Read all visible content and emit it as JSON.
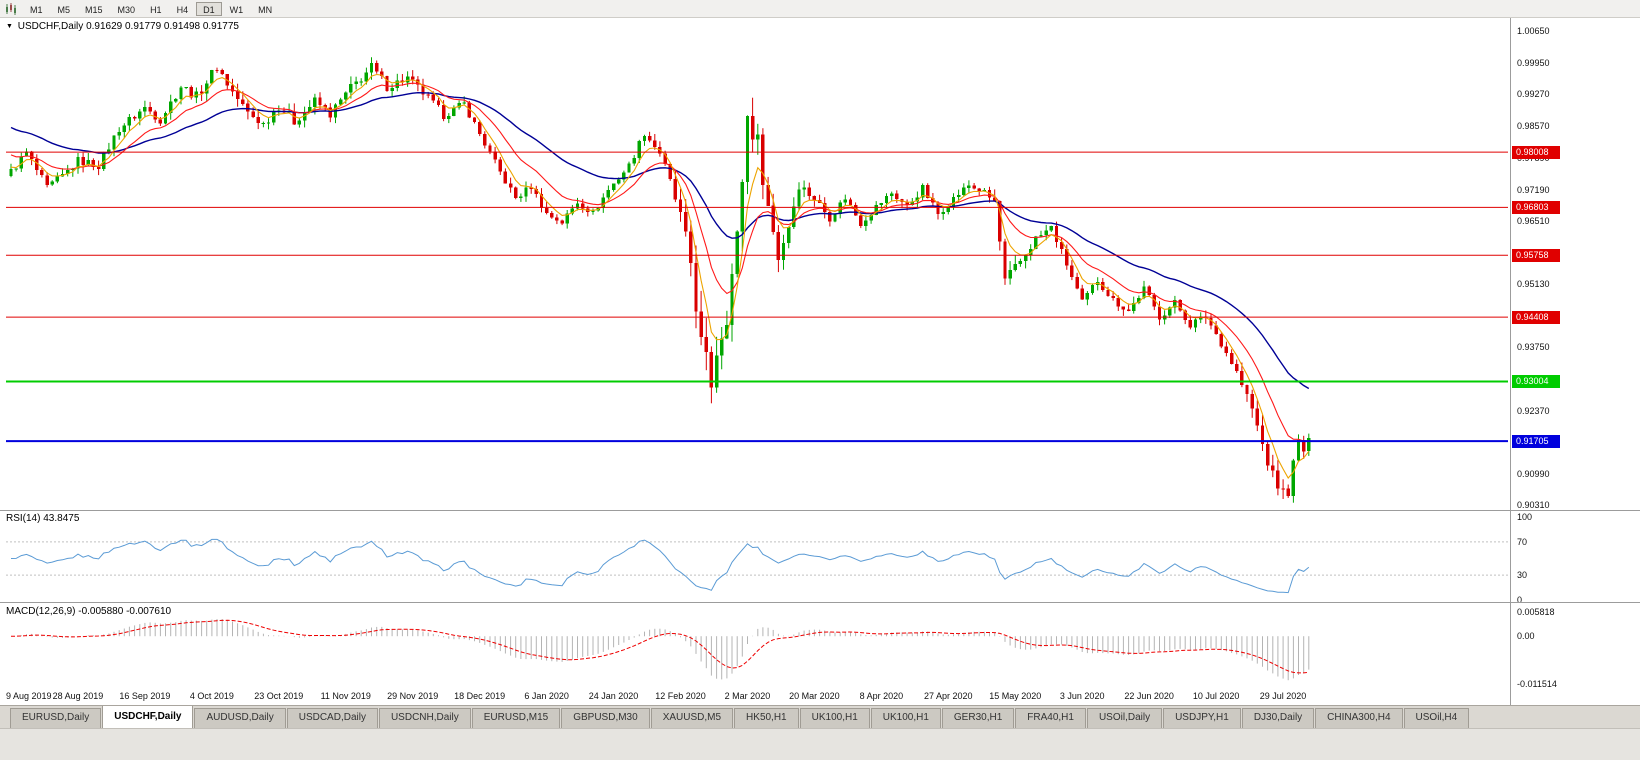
{
  "toolbar": {
    "timeframes": [
      "M1",
      "M5",
      "M15",
      "M30",
      "H1",
      "H4",
      "D1",
      "W1",
      "MN"
    ],
    "active_timeframe": "D1"
  },
  "icons": {
    "title_marker": "▼"
  },
  "chart": {
    "symbol_title": "USDCHF,Daily",
    "ohlc_text": "0.91629 0.91779 0.91498 0.91775"
  },
  "indicators": {
    "rsi_label": "RSI(14) 43.8475",
    "macd_label": "MACD(12,26,9) -0.005880 -0.007610"
  },
  "chart_data": {
    "type": "candlestick",
    "symbol": "USDCHF",
    "timeframe": "Daily",
    "ohlc": {
      "open": 0.91629,
      "high": 0.91779,
      "low": 0.91498,
      "close": 0.91775
    },
    "price_axis": {
      "max": 1.0065,
      "min": 0.9031,
      "ticks": [
        "1.00650",
        "0.99950",
        "0.99270",
        "0.98570",
        "0.97890",
        "0.97190",
        "0.96510",
        "0.95810",
        "0.95130",
        "0.94430",
        "0.93750",
        "0.93050",
        "0.92370",
        "0.91690",
        "0.90990",
        "0.90310"
      ]
    },
    "time_axis": {
      "bars_per_label": 13,
      "labels": [
        "9 Aug 2019",
        "28 Aug 2019",
        "16 Sep 2019",
        "4 Oct 2019",
        "23 Oct 2019",
        "11 Nov 2019",
        "29 Nov 2019",
        "18 Dec 2019",
        "6 Jan 2020",
        "24 Jan 2020",
        "12 Feb 2020",
        "2 Mar 2020",
        "20 Mar 2020",
        "8 Apr 2020",
        "27 Apr 2020",
        "15 May 2020",
        "3 Jun 2020",
        "22 Jun 2020",
        "10 Jul 2020",
        "29 Jul 2020"
      ]
    },
    "levels": [
      {
        "value": 0.98008,
        "label": "0.98008",
        "color": "#e00000",
        "width": 1
      },
      {
        "value": 0.96803,
        "label": "0.96803",
        "color": "#e00000",
        "width": 1
      },
      {
        "value": 0.95758,
        "label": "0.95758",
        "color": "#e00000",
        "width": 1
      },
      {
        "value": 0.94408,
        "label": "0.94408",
        "color": "#e00000",
        "width": 1
      },
      {
        "value": 0.93004,
        "label": "0.93004",
        "color": "#00cc00",
        "width": 2
      },
      {
        "value": 0.91705,
        "label": "0.91705",
        "color": "#0000dd",
        "width": 2
      }
    ],
    "candles": {
      "count": 253,
      "bull_color": "#00a600",
      "bear_color": "#d90000",
      "close_path_anchors": [
        [
          0,
          0.9758
        ],
        [
          3,
          0.98
        ],
        [
          7,
          0.9722
        ],
        [
          10,
          0.9748
        ],
        [
          13,
          0.9782
        ],
        [
          17,
          0.9772
        ],
        [
          21,
          0.9852
        ],
        [
          26,
          0.9898
        ],
        [
          29,
          0.9872
        ],
        [
          33,
          0.9945
        ],
        [
          36,
          0.9922
        ],
        [
          40,
          0.9988
        ],
        [
          43,
          0.9932
        ],
        [
          46,
          0.9886
        ],
        [
          49,
          0.9862
        ],
        [
          52,
          0.9902
        ],
        [
          55,
          0.9868
        ],
        [
          59,
          0.9912
        ],
        [
          62,
          0.9884
        ],
        [
          66,
          0.994
        ],
        [
          70,
          0.9986
        ],
        [
          73,
          0.9944
        ],
        [
          77,
          0.9962
        ],
        [
          80,
          0.993
        ],
        [
          84,
          0.9882
        ],
        [
          88,
          0.9906
        ],
        [
          91,
          0.984
        ],
        [
          95,
          0.9756
        ],
        [
          98,
          0.97
        ],
        [
          101,
          0.9726
        ],
        [
          104,
          0.9666
        ],
        [
          107,
          0.9648
        ],
        [
          110,
          0.9692
        ],
        [
          113,
          0.9668
        ],
        [
          116,
          0.9718
        ],
        [
          120,
          0.9772
        ],
        [
          123,
          0.9843
        ],
        [
          126,
          0.98
        ],
        [
          128,
          0.9736
        ],
        [
          130,
          0.966
        ],
        [
          132,
          0.956
        ],
        [
          134,
          0.938
        ],
        [
          136,
          0.93
        ],
        [
          137,
          0.9372
        ],
        [
          139,
          0.9452
        ],
        [
          141,
          0.9612
        ],
        [
          143,
          0.9878
        ],
        [
          145,
          0.982
        ],
        [
          147,
          0.9682
        ],
        [
          149,
          0.9572
        ],
        [
          151,
          0.9642
        ],
        [
          153,
          0.973
        ],
        [
          156,
          0.97
        ],
        [
          159,
          0.9658
        ],
        [
          162,
          0.9702
        ],
        [
          165,
          0.9646
        ],
        [
          168,
          0.9682
        ],
        [
          171,
          0.9712
        ],
        [
          174,
          0.9682
        ],
        [
          177,
          0.9722
        ],
        [
          180,
          0.9666
        ],
        [
          183,
          0.97
        ],
        [
          186,
          0.9728
        ],
        [
          189,
          0.9712
        ],
        [
          191,
          0.9692
        ],
        [
          193,
          0.9516
        ],
        [
          196,
          0.9562
        ],
        [
          199,
          0.9612
        ],
        [
          202,
          0.9636
        ],
        [
          205,
          0.9556
        ],
        [
          208,
          0.9472
        ],
        [
          211,
          0.9522
        ],
        [
          214,
          0.9478
        ],
        [
          217,
          0.9455
        ],
        [
          220,
          0.9502
        ],
        [
          223,
          0.9442
        ],
        [
          226,
          0.9472
        ],
        [
          229,
          0.9425
        ],
        [
          232,
          0.9442
        ],
        [
          235,
          0.9385
        ],
        [
          238,
          0.932
        ],
        [
          241,
          0.924
        ],
        [
          243,
          0.9162
        ],
        [
          245,
          0.9092
        ],
        [
          247,
          0.9058
        ],
        [
          248,
          0.9062
        ],
        [
          249,
          0.912
        ],
        [
          250,
          0.9168
        ],
        [
          251,
          0.915
        ],
        [
          252,
          0.91775
        ]
      ],
      "range_anchors": [
        [
          0,
          0.0016
        ],
        [
          40,
          0.002
        ],
        [
          70,
          0.002
        ],
        [
          90,
          0.0015
        ],
        [
          120,
          0.0014
        ],
        [
          128,
          0.0018
        ],
        [
          131,
          0.0032
        ],
        [
          134,
          0.0052
        ],
        [
          137,
          0.006
        ],
        [
          140,
          0.0048
        ],
        [
          143,
          0.0055
        ],
        [
          146,
          0.004
        ],
        [
          149,
          0.0032
        ],
        [
          152,
          0.0022
        ],
        [
          158,
          0.0016
        ],
        [
          190,
          0.0014
        ],
        [
          193,
          0.003
        ],
        [
          196,
          0.002
        ],
        [
          200,
          0.0015
        ],
        [
          236,
          0.0016
        ],
        [
          241,
          0.0026
        ],
        [
          245,
          0.003
        ],
        [
          248,
          0.0024
        ],
        [
          252,
          0.0018
        ]
      ]
    },
    "moving_averages": [
      {
        "period": 34,
        "color": "#000096",
        "seed": 0.986,
        "width": 1.4
      },
      {
        "period": 13,
        "color": "#ff1a1a",
        "seed": 0.98,
        "width": 1.1
      },
      {
        "period": 5,
        "color": "#eda400",
        "seed": 0.977,
        "width": 1.1
      }
    ],
    "rsi": {
      "period": 14,
      "value": 43.8475,
      "color": "#5b9bd5",
      "level_lines": [
        70,
        30
      ],
      "scale_labels": [
        "100",
        "70",
        "30",
        "0"
      ]
    },
    "macd": {
      "fast": 12,
      "slow": 26,
      "signal": 9,
      "main_value": -0.00588,
      "signal_value": -0.00761,
      "vmax": 0.005818,
      "vmin": -0.011514,
      "hist_color": "#b4b4b4",
      "signal_color": "#ee0000",
      "scale_labels": [
        "0.005818",
        "0.00",
        "-0.011514"
      ]
    }
  },
  "tabs": {
    "items": [
      {
        "label": "EURUSD,Daily",
        "active": false
      },
      {
        "label": "USDCHF,Daily",
        "active": true
      },
      {
        "label": "AUDUSD,Daily",
        "active": false
      },
      {
        "label": "USDCAD,Daily",
        "active": false
      },
      {
        "label": "USDCNH,Daily",
        "active": false
      },
      {
        "label": "EURUSD,M15",
        "active": false
      },
      {
        "label": "GBPUSD,M30",
        "active": false
      },
      {
        "label": "XAUUSD,M5",
        "active": false
      },
      {
        "label": "HK50,H1",
        "active": false
      },
      {
        "label": "UK100,H1",
        "active": false
      },
      {
        "label": "UK100,H1",
        "active": false
      },
      {
        "label": "GER30,H1",
        "active": false
      },
      {
        "label": "FRA40,H1",
        "active": false
      },
      {
        "label": "USOil,Daily",
        "active": false
      },
      {
        "label": "USDJPY,H1",
        "active": false
      },
      {
        "label": "DJ30,Daily",
        "active": false
      },
      {
        "label": "CHINA300,H4",
        "active": false
      },
      {
        "label": "USOil,H4",
        "active": false
      }
    ]
  }
}
